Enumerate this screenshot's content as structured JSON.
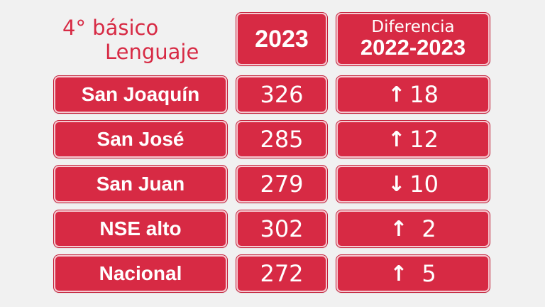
{
  "title": {
    "line1": "4° básico",
    "line2": "Lenguaje"
  },
  "header": {
    "year": "2023",
    "diff_top": "Diferencia",
    "diff_bottom": "2022-2023"
  },
  "rows": [
    {
      "name": "San Joaquín",
      "score": "326",
      "arrow": "↑",
      "diff": "18"
    },
    {
      "name": "San José",
      "score": "285",
      "arrow": "↑",
      "diff": "12"
    },
    {
      "name": "San Juan",
      "score": "279",
      "arrow": "↓",
      "diff": "10"
    },
    {
      "name": "NSE alto",
      "score": "302",
      "arrow": "↑",
      "diff": "2"
    },
    {
      "name": "Nacional",
      "score": "272",
      "arrow": "↑",
      "diff": "5"
    }
  ],
  "colors": {
    "accent": "#d72a44",
    "background": "#f1f1f1",
    "text_on_accent": "#ffffff"
  }
}
